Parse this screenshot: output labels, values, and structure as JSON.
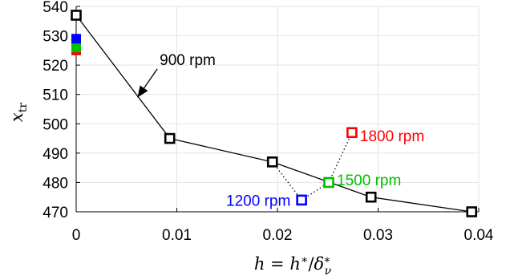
{
  "chart_data": {
    "type": "scatter",
    "xlabel": "h = h*/δ*ν",
    "ylabel": "x_tr",
    "xlim": [
      0,
      0.04
    ],
    "ylim": [
      470,
      540
    ],
    "x_ticks": [
      0,
      0.01,
      0.02,
      0.03,
      0.04
    ],
    "x_tick_labels": [
      "0",
      "0.01",
      "0.02",
      "0.03",
      "0.04"
    ],
    "y_ticks": [
      470,
      480,
      490,
      500,
      510,
      520,
      530,
      540
    ],
    "y_tick_labels": [
      "470",
      "480",
      "490",
      "500",
      "510",
      "520",
      "530",
      "540"
    ],
    "grid": true,
    "series": [
      {
        "color": "#000000",
        "marker": "hollow-square",
        "line": "solid",
        "x": [
          0,
          0.0093,
          0.0195,
          0.0293,
          0.0393
        ],
        "y": [
          537,
          495,
          487,
          475,
          470
        ]
      },
      {
        "color": "#0000ff",
        "marker": "hollow-square",
        "x": [
          0.0224
        ],
        "y": [
          474
        ]
      },
      {
        "color": "#00c000",
        "marker": "hollow-square",
        "x": [
          0.0251
        ],
        "y": [
          480
        ]
      },
      {
        "color": "#ff0000",
        "marker": "hollow-square",
        "x": [
          0.0274
        ],
        "y": [
          497
        ]
      }
    ],
    "baseline_markers": [
      {
        "color": "#ff0000",
        "x": 0,
        "y": 525
      },
      {
        "color": "#00c000",
        "x": 0,
        "y": 526
      },
      {
        "color": "#0000ff",
        "x": 0,
        "y": 529
      },
      {
        "color": "#000000",
        "x": 0,
        "y": 537
      }
    ],
    "dotted_links": [
      {
        "from": [
          0.0195,
          487
        ],
        "to": [
          0.0224,
          474
        ]
      },
      {
        "from": [
          0.0224,
          474
        ],
        "to": [
          0.0251,
          480
        ]
      },
      {
        "from": [
          0.0251,
          480
        ],
        "to": [
          0.0274,
          497
        ]
      }
    ],
    "annotations": [
      {
        "text": "900 rpm",
        "color": "#000000",
        "x": 0.0083,
        "y": 522,
        "arrow_to": [
          0.0061,
          509
        ]
      },
      {
        "text": "1200 rpm",
        "color": "#0000ff",
        "x": 0.0213,
        "y": 474
      },
      {
        "text": "1500 rpm",
        "color": "#00c000",
        "x": 0.0259,
        "y": 481
      },
      {
        "text": "1800 rpm",
        "color": "#ff0000",
        "x": 0.0282,
        "y": 496
      }
    ]
  }
}
